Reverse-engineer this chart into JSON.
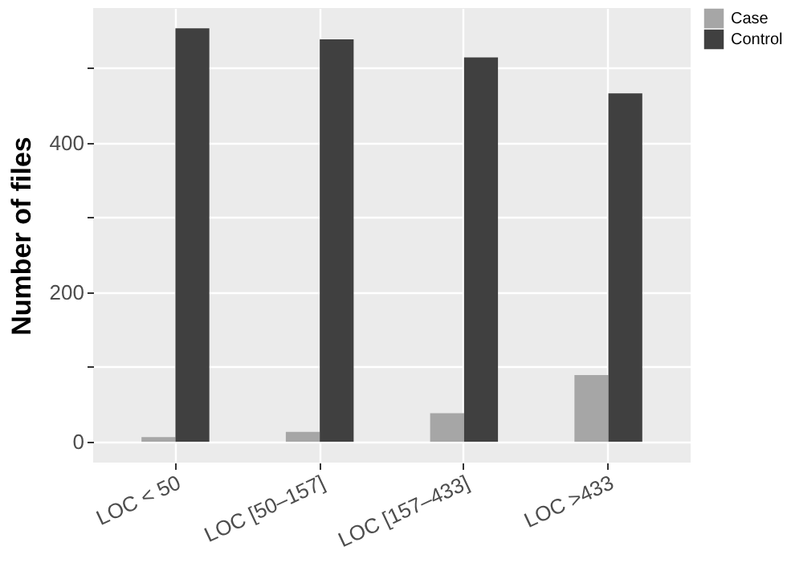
{
  "chart_data": {
    "type": "bar",
    "ylabel": "Number of files",
    "categories": [
      "LOC < 50",
      "LOC [50–157]",
      "LOC [157–433]",
      "LOC >433"
    ],
    "series": [
      {
        "name": "Case",
        "color": "#a6a6a6",
        "values": [
          6,
          13,
          38,
          89
        ]
      },
      {
        "name": "Control",
        "color": "#404040",
        "values": [
          553,
          538,
          514,
          466
        ]
      }
    ],
    "ylim": [
      -28,
      580
    ],
    "yticks": [
      0,
      {
        "value": 100,
        "label": null
      },
      200,
      {
        "value": 300,
        "label": null
      },
      400,
      {
        "value": 500,
        "label": null
      }
    ],
    "grid": true,
    "legend": "right"
  }
}
